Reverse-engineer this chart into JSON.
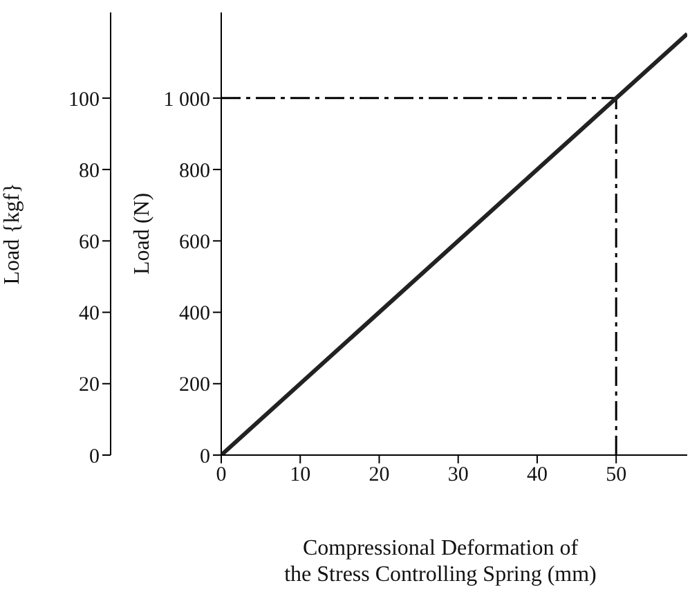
{
  "chart_data": {
    "type": "line",
    "xlabel": "Compressional Deformation of\nthe Stress Controlling Spring (mm)",
    "ylabel": "Load (N)",
    "y2label": "Load {kgf}",
    "x": [
      0,
      59
    ],
    "series": [
      {
        "color": "#222222",
        "values": [
          0,
          1180
        ]
      }
    ],
    "xlim": [
      0,
      59
    ],
    "xticks": [
      0,
      10,
      20,
      30,
      40,
      50
    ],
    "ylim": [
      0,
      1240
    ],
    "yticks": [
      0,
      200,
      400,
      600,
      800,
      {
        "value": 1000,
        "label": "1 000"
      }
    ],
    "y2lim": [
      0,
      124
    ],
    "y2ticks": [
      0,
      20,
      40,
      60,
      80,
      100
    ],
    "ref_lines": [
      {
        "axis": "y",
        "value": 1000,
        "color": "#000000",
        "line_style": "dashed"
      },
      {
        "axis": "x",
        "value": 50,
        "color": "#000000",
        "line_style": "dashed"
      }
    ],
    "grid": false,
    "legend": false,
    "marker": "none",
    "line_style": "solid"
  }
}
